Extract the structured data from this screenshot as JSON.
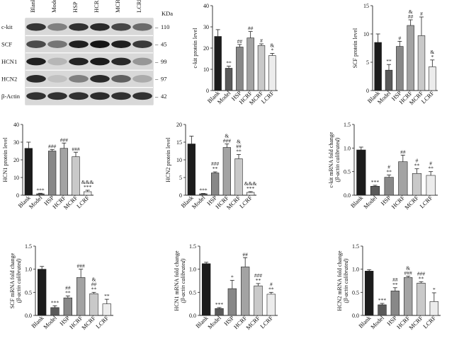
{
  "colors": {
    "Blank": "#1c1c1c",
    "Model": "#5a5a5a",
    "HSP": "#888888",
    "HCRF": "#a3a3a3",
    "MCRF": "#c9c9c9",
    "LCRF": "#ececec",
    "axis": "#222222"
  },
  "western_blot": {
    "lanes": [
      "Blank",
      "Model",
      "HSP",
      "HCRF",
      "MCRF",
      "LCRF"
    ],
    "unit": "KDa",
    "bands": [
      {
        "name": "c-kit",
        "kda": "110",
        "intensity": [
          0.8,
          0.45,
          0.82,
          0.85,
          0.72,
          0.55
        ]
      },
      {
        "name": "SCF",
        "kda": "45",
        "intensity": [
          0.7,
          0.5,
          0.9,
          0.95,
          0.9,
          0.78
        ]
      },
      {
        "name": "HCN1",
        "kda": "99",
        "intensity": [
          0.9,
          0.2,
          0.88,
          0.92,
          0.85,
          0.35
        ]
      },
      {
        "name": "HCN2",
        "kda": "97",
        "intensity": [
          0.85,
          0.15,
          0.45,
          0.85,
          0.6,
          0.25
        ]
      },
      {
        "name": "β-Actin",
        "kda": "42",
        "intensity": [
          0.82,
          0.82,
          0.82,
          0.84,
          0.82,
          0.82
        ]
      }
    ]
  },
  "chart_data": [
    {
      "type": "bar",
      "id": "ckit-protein",
      "categories": [
        "Blank",
        "Model",
        "HSP",
        "HCRF",
        "MCRF",
        "LCRF"
      ],
      "values": [
        25.5,
        10.5,
        20.5,
        24.8,
        21.2,
        16.5
      ],
      "errors": [
        3.2,
        1.0,
        1.2,
        3.0,
        0.8,
        1.0
      ],
      "marks": [
        [
          "",
          "",
          ""
        ],
        [
          "**",
          "",
          ""
        ],
        [
          "##",
          "",
          ""
        ],
        [
          "##",
          "",
          ""
        ],
        [
          "#",
          "",
          ""
        ],
        [
          "*",
          "",
          "&"
        ]
      ],
      "ylabel": "c-kit protein level",
      "ylim": [
        0,
        40
      ],
      "yticks": [
        0,
        10,
        20,
        30,
        40
      ],
      "ytick_labels": [
        "0",
        "10",
        "20",
        "30",
        "40"
      ]
    },
    {
      "type": "bar",
      "id": "scf-protein",
      "categories": [
        "Blank",
        "Model",
        "HSP",
        "HCRF",
        "MCRF",
        "LCRF"
      ],
      "values": [
        8.5,
        3.6,
        7.8,
        11.5,
        9.7,
        4.2
      ],
      "errors": [
        1.5,
        1.0,
        0.9,
        1.0,
        3.3,
        1.2
      ],
      "marks": [
        [
          "",
          "",
          ""
        ],
        [
          "**",
          "",
          ""
        ],
        [
          "#",
          "",
          ""
        ],
        [
          "##",
          "",
          "&"
        ],
        [
          "#",
          "",
          ""
        ],
        [
          "*",
          "",
          "&"
        ]
      ],
      "ylabel": "SCF protein level",
      "ylim": [
        0,
        15
      ],
      "yticks": [
        0,
        5,
        10,
        15
      ],
      "ytick_labels": [
        "0",
        "5",
        "10",
        "15"
      ]
    },
    {
      "type": "bar",
      "id": "hcn1-protein",
      "categories": [
        "Blank",
        "Model",
        "HSP",
        "HCRF",
        "MCRF",
        "LCRF"
      ],
      "values": [
        26.5,
        0.8,
        25.0,
        26.5,
        21.8,
        2.0
      ],
      "errors": [
        3.5,
        0.3,
        0.8,
        3.0,
        2.5,
        0.8
      ],
      "marks": [
        [
          "",
          "",
          ""
        ],
        [
          "***",
          "",
          ""
        ],
        [
          "###",
          "",
          ""
        ],
        [
          "###",
          "",
          ""
        ],
        [
          "###",
          "",
          ""
        ],
        [
          "***",
          "",
          "&&&"
        ]
      ],
      "ylabel": "HCN1 protein level",
      "ylim": [
        0,
        40
      ],
      "yticks": [
        0,
        10,
        20,
        30,
        40
      ],
      "ytick_labels": [
        "0",
        "10",
        "20",
        "30",
        "40"
      ]
    },
    {
      "type": "bar",
      "id": "hcn2-protein",
      "categories": [
        "Blank",
        "Model",
        "HSP",
        "HCRF",
        "MCRF",
        "LCRF"
      ],
      "values": [
        14.5,
        0.4,
        6.3,
        13.5,
        10.3,
        0.8
      ],
      "errors": [
        2.2,
        0.1,
        0.3,
        1.0,
        1.2,
        0.2
      ],
      "marks": [
        [
          "",
          "",
          ""
        ],
        [
          "***",
          "",
          ""
        ],
        [
          "**",
          "###",
          ""
        ],
        [
          "###",
          "",
          "&"
        ],
        [
          "**",
          "##",
          "&"
        ],
        [
          "***",
          "",
          "&&&"
        ]
      ],
      "ylabel": "HCN2 protein level",
      "ylim": [
        0,
        20
      ],
      "yticks": [
        0,
        5,
        10,
        15,
        20
      ],
      "ytick_labels": [
        "0",
        "5",
        "10",
        "15",
        "20"
      ]
    },
    {
      "type": "bar",
      "id": "ckit-mrna",
      "categories": [
        "Blank",
        "Model",
        "HSP",
        "HCRF",
        "MCRF",
        "LCRF"
      ],
      "values": [
        0.96,
        0.19,
        0.38,
        0.71,
        0.46,
        0.42
      ],
      "errors": [
        0.06,
        0.02,
        0.05,
        0.14,
        0.1,
        0.08
      ],
      "marks": [
        [
          "",
          "",
          ""
        ],
        [
          "***",
          "",
          ""
        ],
        [
          "**",
          "#",
          ""
        ],
        [
          "##",
          "",
          ""
        ],
        [
          "**",
          "#",
          ""
        ],
        [
          "**",
          "#",
          ""
        ]
      ],
      "ylabel": "c-kit mRNA fold change",
      "ylabel2": "(β-actin calibrated)",
      "ylim": [
        0,
        1.5
      ],
      "yticks": [
        0,
        0.5,
        1.0,
        1.5
      ],
      "ytick_labels": [
        "0.0",
        "0.5",
        "1.0",
        "1.5"
      ]
    },
    {
      "type": "bar",
      "id": "scf-mrna",
      "categories": [
        "Blank",
        "Model",
        "HSP",
        "HCRF",
        "MCRF",
        "LCRF"
      ],
      "values": [
        1.0,
        0.17,
        0.38,
        0.82,
        0.47,
        0.25
      ],
      "errors": [
        0.06,
        0.04,
        0.04,
        0.18,
        0.03,
        0.1
      ],
      "marks": [
        [
          "",
          "",
          ""
        ],
        [
          "***",
          "",
          ""
        ],
        [
          "**",
          "##",
          ""
        ],
        [
          "###",
          "",
          ""
        ],
        [
          "**",
          "##",
          "&"
        ],
        [
          "**",
          "",
          ""
        ]
      ],
      "ylabel": "SCF mRNA fold change",
      "ylabel2": "(β-actin calibrated)",
      "ylim": [
        0,
        1.5
      ],
      "yticks": [
        0,
        0.5,
        1.0,
        1.5
      ],
      "ytick_labels": [
        "0.0",
        "0.5",
        "1.0",
        "1.5"
      ]
    },
    {
      "type": "bar",
      "id": "hcn1-mrna",
      "categories": [
        "Blank",
        "Model",
        "HSP",
        "HCRF",
        "MCRF",
        "LCRF"
      ],
      "values": [
        1.12,
        0.15,
        0.58,
        1.05,
        0.64,
        0.46
      ],
      "errors": [
        0.03,
        0.02,
        0.18,
        0.2,
        0.05,
        0.04
      ],
      "marks": [
        [
          "",
          "",
          ""
        ],
        [
          "***",
          "",
          ""
        ],
        [
          "*",
          "",
          ""
        ],
        [
          "##",
          "",
          ""
        ],
        [
          "**",
          "###",
          ""
        ],
        [
          "**",
          "#",
          ""
        ]
      ],
      "ylabel": "HCN1 mRNA fold change",
      "ylabel2": "(β-actin calibrated)",
      "ylim": [
        0,
        1.5
      ],
      "yticks": [
        0,
        0.5,
        1.0,
        1.5
      ],
      "ytick_labels": [
        "0.0",
        "0.5",
        "1.0",
        "1.5"
      ]
    },
    {
      "type": "bar",
      "id": "hcn2-mrna",
      "categories": [
        "Blank",
        "Model",
        "HSP",
        "HCRF",
        "MCRF",
        "LCRF"
      ],
      "values": [
        0.96,
        0.23,
        0.53,
        0.82,
        0.7,
        0.3
      ],
      "errors": [
        0.03,
        0.03,
        0.07,
        0.03,
        0.03,
        0.19
      ],
      "marks": [
        [
          "",
          "",
          ""
        ],
        [
          "***",
          "",
          ""
        ],
        [
          "**",
          "##",
          ""
        ],
        [
          "###",
          "",
          "&"
        ],
        [
          "**",
          "###",
          ""
        ],
        [
          "*",
          "",
          ""
        ]
      ],
      "ylabel": "HCN2 mRNA fold change",
      "ylabel2": "(β-actin calibrated)",
      "ylim": [
        0,
        1.5
      ],
      "yticks": [
        0,
        0.5,
        1.0,
        1.5
      ],
      "ytick_labels": [
        "0.0",
        "0.5",
        "1.0",
        "1.5"
      ]
    }
  ]
}
